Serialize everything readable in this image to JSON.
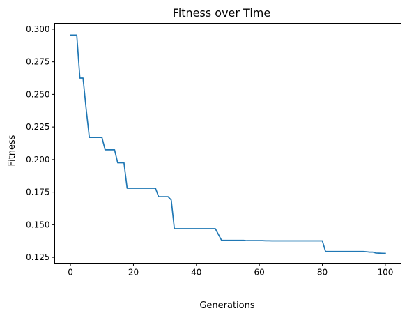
{
  "chart_data": {
    "type": "line",
    "title": "Fitness over Time",
    "xlabel": "Generations",
    "ylabel": "Fitness",
    "xlim": [
      -5,
      105
    ],
    "ylim": [
      0.1205,
      0.3045
    ],
    "x_ticks": [
      0,
      20,
      40,
      60,
      80,
      100
    ],
    "x_tick_labels": [
      "0",
      "20",
      "40",
      "60",
      "80",
      "100"
    ],
    "y_ticks": [
      0.125,
      0.15,
      0.175,
      0.2,
      0.225,
      0.25,
      0.275,
      0.3
    ],
    "y_tick_labels": [
      "0.125",
      "0.150",
      "0.175",
      "0.200",
      "0.225",
      "0.250",
      "0.275",
      "0.300"
    ],
    "grid": false,
    "series": [
      {
        "color": "#1f77b4",
        "x": [
          0,
          1,
          2,
          3,
          4,
          5,
          6,
          7,
          8,
          9,
          10,
          11,
          12,
          13,
          14,
          15,
          16,
          17,
          18,
          19,
          20,
          21,
          22,
          23,
          24,
          25,
          26,
          27,
          28,
          29,
          30,
          31,
          32,
          33,
          34,
          35,
          36,
          37,
          38,
          39,
          40,
          41,
          42,
          43,
          44,
          45,
          46,
          47,
          48,
          49,
          50,
          51,
          52,
          53,
          54,
          55,
          56,
          57,
          58,
          59,
          60,
          61,
          62,
          63,
          64,
          65,
          66,
          67,
          68,
          69,
          70,
          71,
          72,
          73,
          74,
          75,
          76,
          77,
          78,
          79,
          80,
          81,
          82,
          83,
          84,
          85,
          86,
          87,
          88,
          89,
          90,
          91,
          92,
          93,
          94,
          95,
          96,
          97,
          98,
          99,
          100
        ],
        "y": [
          0.2955,
          0.2955,
          0.2955,
          0.2625,
          0.2625,
          0.2385,
          0.217,
          0.217,
          0.217,
          0.217,
          0.217,
          0.2075,
          0.2075,
          0.2075,
          0.2075,
          0.1975,
          0.1975,
          0.1975,
          0.178,
          0.178,
          0.178,
          0.178,
          0.178,
          0.178,
          0.178,
          0.178,
          0.178,
          0.178,
          0.1715,
          0.1715,
          0.1715,
          0.1715,
          0.169,
          0.147,
          0.147,
          0.147,
          0.147,
          0.147,
          0.147,
          0.147,
          0.147,
          0.147,
          0.147,
          0.147,
          0.147,
          0.147,
          0.147,
          0.1425,
          0.138,
          0.138,
          0.138,
          0.138,
          0.138,
          0.138,
          0.138,
          0.138,
          0.1378,
          0.1378,
          0.1378,
          0.1378,
          0.1378,
          0.1378,
          0.1377,
          0.1377,
          0.1376,
          0.1376,
          0.1376,
          0.1376,
          0.1376,
          0.1376,
          0.1376,
          0.1376,
          0.1376,
          0.1376,
          0.1376,
          0.1376,
          0.1376,
          0.1376,
          0.1376,
          0.1376,
          0.1376,
          0.1295,
          0.1295,
          0.1295,
          0.1295,
          0.1295,
          0.1295,
          0.1295,
          0.1295,
          0.1295,
          0.1295,
          0.1295,
          0.1295,
          0.1295,
          0.1293,
          0.129,
          0.129,
          0.1283,
          0.1282,
          0.1281,
          0.128
        ]
      }
    ]
  }
}
